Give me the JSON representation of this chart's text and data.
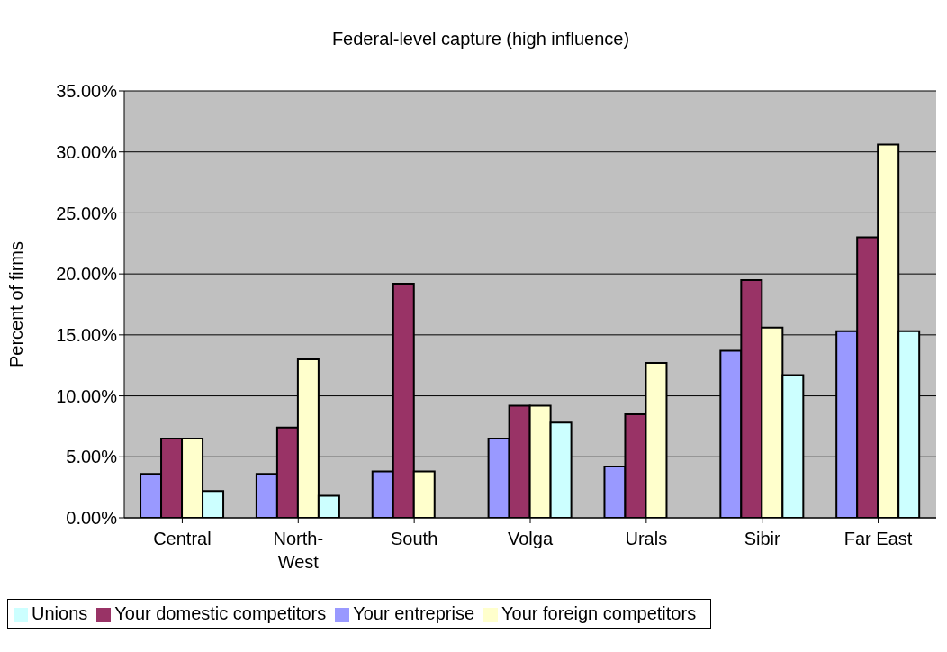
{
  "chart_data": {
    "type": "bar",
    "title": "Federal-level capture (high influence)",
    "ylabel": "Percent of firms",
    "categories": [
      "Central",
      "North-\nWest",
      "South",
      "Volga",
      "Urals",
      "Sibir",
      "Far East"
    ],
    "series": [
      {
        "name": "Your entreprise",
        "color": "#9999ff",
        "values": [
          3.6,
          3.6,
          3.8,
          6.5,
          4.2,
          13.7,
          15.3
        ]
      },
      {
        "name": "Your domestic competitors",
        "color": "#993366",
        "values": [
          6.5,
          7.4,
          19.2,
          9.2,
          8.5,
          19.5,
          23.0
        ]
      },
      {
        "name": "Your foreign competitors",
        "color": "#ffffcc",
        "values": [
          6.5,
          13.0,
          3.8,
          9.2,
          12.7,
          15.6,
          30.6
        ]
      },
      {
        "name": "Unions",
        "color": "#ccffff",
        "values": [
          2.2,
          1.8,
          0,
          7.8,
          0,
          11.7,
          15.3
        ]
      }
    ],
    "ylim": [
      0,
      35
    ],
    "yticks": [
      {
        "value": 0,
        "label": "0.00%"
      },
      {
        "value": 5,
        "label": "5.00%"
      },
      {
        "value": 10,
        "label": "10.00%"
      },
      {
        "value": 15,
        "label": "15.00%"
      },
      {
        "value": 20,
        "label": "20.00%"
      },
      {
        "value": 25,
        "label": "25.00%"
      },
      {
        "value": 30,
        "label": "30.00%"
      },
      {
        "value": 35,
        "label": "35.00%"
      }
    ],
    "grid": "y",
    "legend": "bottom"
  }
}
